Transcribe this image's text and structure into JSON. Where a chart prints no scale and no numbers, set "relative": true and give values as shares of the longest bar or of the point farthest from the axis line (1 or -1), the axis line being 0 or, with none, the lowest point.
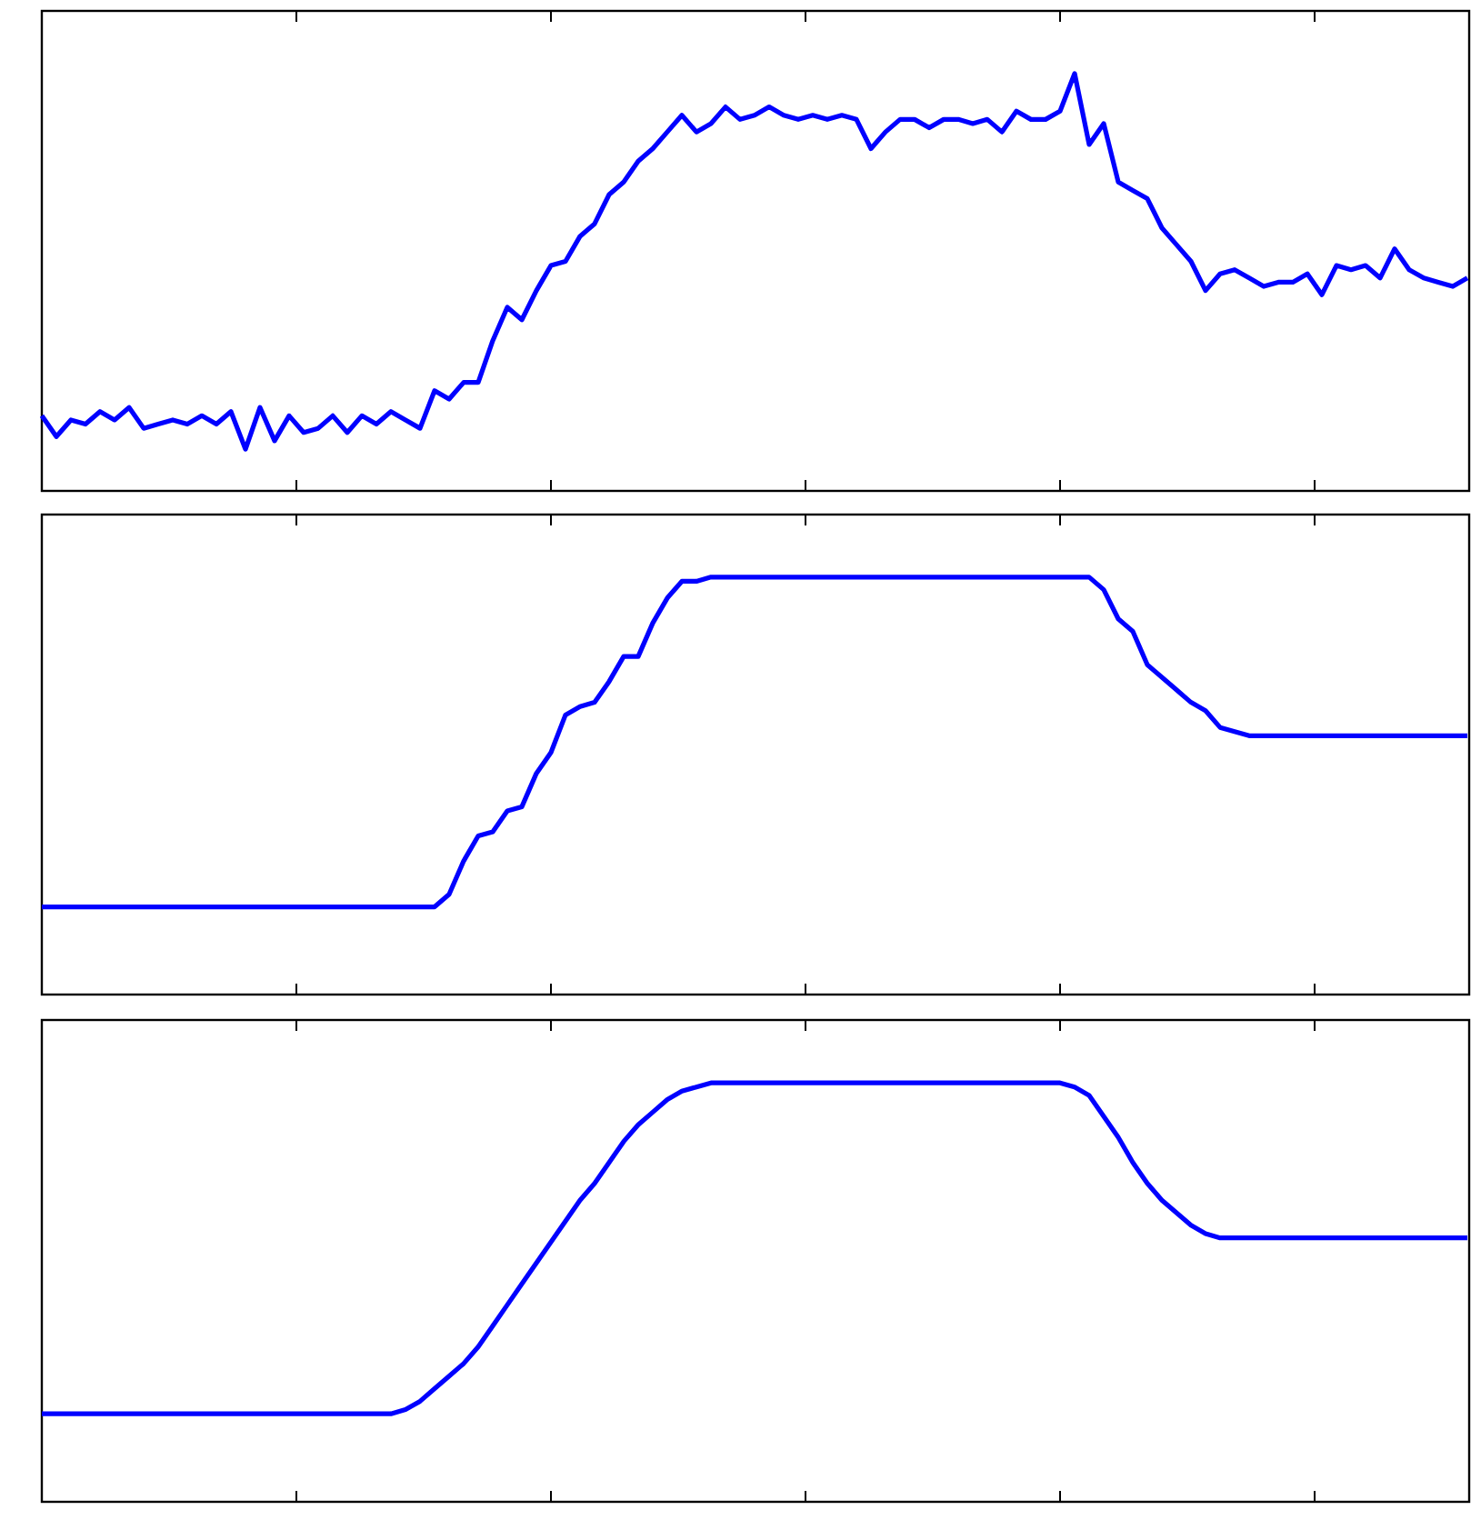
{
  "chart_data": [
    {
      "type": "line",
      "relative": true,
      "color": "#0000ff",
      "categories": [
        null,
        null,
        null,
        null,
        null,
        null,
        null,
        null,
        null,
        null,
        null,
        null,
        null,
        null,
        null,
        null,
        null,
        null,
        null,
        null,
        null,
        null,
        null,
        null,
        null,
        null,
        null,
        null,
        null,
        null,
        null,
        null,
        null,
        null,
        null,
        null,
        null,
        null,
        null,
        null,
        null,
        null,
        null,
        null,
        null,
        null,
        null,
        null,
        null,
        null,
        null,
        null,
        null,
        null,
        null,
        null,
        null,
        null,
        null,
        null,
        null,
        null,
        null,
        null,
        null,
        null,
        null,
        null,
        null,
        null,
        null,
        null,
        null,
        null,
        null,
        null,
        null,
        null,
        null,
        null,
        null,
        null,
        null,
        null,
        null,
        null,
        null,
        null,
        null,
        null,
        null,
        null,
        null,
        null,
        null,
        null,
        null,
        null,
        null
      ],
      "values": [
        0.18,
        0.13,
        0.17,
        0.16,
        0.19,
        0.17,
        0.2,
        0.15,
        0.16,
        0.17,
        0.16,
        0.18,
        0.16,
        0.19,
        0.1,
        0.2,
        0.12,
        0.18,
        0.14,
        0.15,
        0.18,
        0.14,
        0.18,
        0.16,
        0.19,
        0.17,
        0.15,
        0.24,
        0.22,
        0.26,
        0.26,
        0.36,
        0.44,
        0.41,
        0.48,
        0.54,
        0.55,
        0.61,
        0.64,
        0.71,
        0.74,
        0.79,
        0.82,
        0.86,
        0.9,
        0.86,
        0.88,
        0.92,
        0.89,
        0.9,
        0.92,
        0.9,
        0.89,
        0.9,
        0.89,
        0.9,
        0.89,
        0.82,
        0.86,
        0.89,
        0.89,
        0.87,
        0.89,
        0.89,
        0.88,
        0.89,
        0.86,
        0.91,
        0.89,
        0.89,
        0.91,
        1,
        0.83,
        0.88,
        0.74,
        0.72,
        0.7,
        0.63,
        0.59,
        0.55,
        0.48,
        0.52,
        0.53,
        0.51,
        0.49,
        0.5,
        0.5,
        0.52,
        0.47,
        0.54,
        0.53,
        0.54,
        0.51,
        0.58,
        0.53,
        0.51,
        0.5,
        0.49,
        0.51
      ]
    },
    {
      "type": "line",
      "relative": true,
      "color": "#0000ff",
      "categories": [
        null,
        null,
        null,
        null,
        null,
        null,
        null,
        null,
        null,
        null,
        null,
        null,
        null,
        null,
        null,
        null,
        null,
        null,
        null,
        null,
        null,
        null,
        null,
        null,
        null,
        null,
        null,
        null,
        null,
        null,
        null,
        null,
        null,
        null,
        null,
        null,
        null,
        null,
        null,
        null,
        null,
        null,
        null,
        null,
        null,
        null,
        null,
        null,
        null,
        null,
        null,
        null,
        null,
        null,
        null,
        null,
        null,
        null,
        null,
        null,
        null,
        null,
        null,
        null,
        null,
        null,
        null,
        null,
        null,
        null,
        null,
        null,
        null,
        null,
        null,
        null,
        null,
        null,
        null,
        null,
        null,
        null,
        null,
        null,
        null,
        null,
        null,
        null,
        null,
        null,
        null,
        null,
        null,
        null,
        null,
        null,
        null,
        null,
        null
      ],
      "values": [
        0.21,
        0.21,
        0.21,
        0.21,
        0.21,
        0.21,
        0.21,
        0.21,
        0.21,
        0.21,
        0.21,
        0.21,
        0.21,
        0.21,
        0.21,
        0.21,
        0.21,
        0.21,
        0.21,
        0.21,
        0.21,
        0.21,
        0.21,
        0.21,
        0.21,
        0.21,
        0.21,
        0.21,
        0.24,
        0.32,
        0.38,
        0.39,
        0.44,
        0.45,
        0.53,
        0.58,
        0.67,
        0.69,
        0.7,
        0.75,
        0.81,
        0.81,
        0.89,
        0.95,
        0.99,
        0.99,
        1,
        1,
        1,
        1,
        1,
        1,
        1,
        1,
        1,
        1,
        1,
        1,
        1,
        1,
        1,
        1,
        1,
        1,
        1,
        1,
        1,
        1,
        1,
        1,
        1,
        1,
        1,
        0.97,
        0.9,
        0.87,
        0.79,
        0.76,
        0.73,
        0.7,
        0.68,
        0.64,
        0.63,
        0.62,
        0.62,
        0.62,
        0.62,
        0.62,
        0.62,
        0.62,
        0.62,
        0.62,
        0.62,
        0.62,
        0.62,
        0.62,
        0.62,
        0.62,
        0.62
      ]
    },
    {
      "type": "line",
      "relative": true,
      "color": "#0000ff",
      "categories": [
        null,
        null,
        null,
        null,
        null,
        null,
        null,
        null,
        null,
        null,
        null,
        null,
        null,
        null,
        null,
        null,
        null,
        null,
        null,
        null,
        null,
        null,
        null,
        null,
        null,
        null,
        null,
        null,
        null,
        null,
        null,
        null,
        null,
        null,
        null,
        null,
        null,
        null,
        null,
        null,
        null,
        null,
        null,
        null,
        null,
        null,
        null,
        null,
        null,
        null,
        null,
        null,
        null,
        null,
        null,
        null,
        null,
        null,
        null,
        null,
        null,
        null,
        null,
        null,
        null,
        null,
        null,
        null,
        null,
        null,
        null,
        null,
        null,
        null,
        null,
        null,
        null,
        null,
        null,
        null,
        null,
        null,
        null,
        null,
        null,
        null,
        null,
        null,
        null,
        null,
        null,
        null,
        null,
        null,
        null,
        null,
        null,
        null,
        null
      ],
      "values": [
        0.21,
        0.21,
        0.21,
        0.21,
        0.21,
        0.21,
        0.21,
        0.21,
        0.21,
        0.21,
        0.21,
        0.21,
        0.21,
        0.21,
        0.21,
        0.21,
        0.21,
        0.21,
        0.21,
        0.21,
        0.21,
        0.21,
        0.21,
        0.21,
        0.21,
        0.22,
        0.24,
        0.27,
        0.3,
        0.33,
        0.37,
        0.42,
        0.47,
        0.52,
        0.57,
        0.62,
        0.67,
        0.72,
        0.76,
        0.81,
        0.86,
        0.9,
        0.93,
        0.96,
        0.98,
        0.99,
        1,
        1,
        1,
        1,
        1,
        1,
        1,
        1,
        1,
        1,
        1,
        1,
        1,
        1,
        1,
        1,
        1,
        1,
        1,
        1,
        1,
        1,
        1,
        1,
        1,
        0.99,
        0.97,
        0.92,
        0.87,
        0.81,
        0.76,
        0.72,
        0.69,
        0.66,
        0.64,
        0.63,
        0.63,
        0.63,
        0.63,
        0.63,
        0.63,
        0.63,
        0.63,
        0.63,
        0.63,
        0.63,
        0.63,
        0.63,
        0.63,
        0.63,
        0.63,
        0.63,
        0.63
      ]
    }
  ]
}
